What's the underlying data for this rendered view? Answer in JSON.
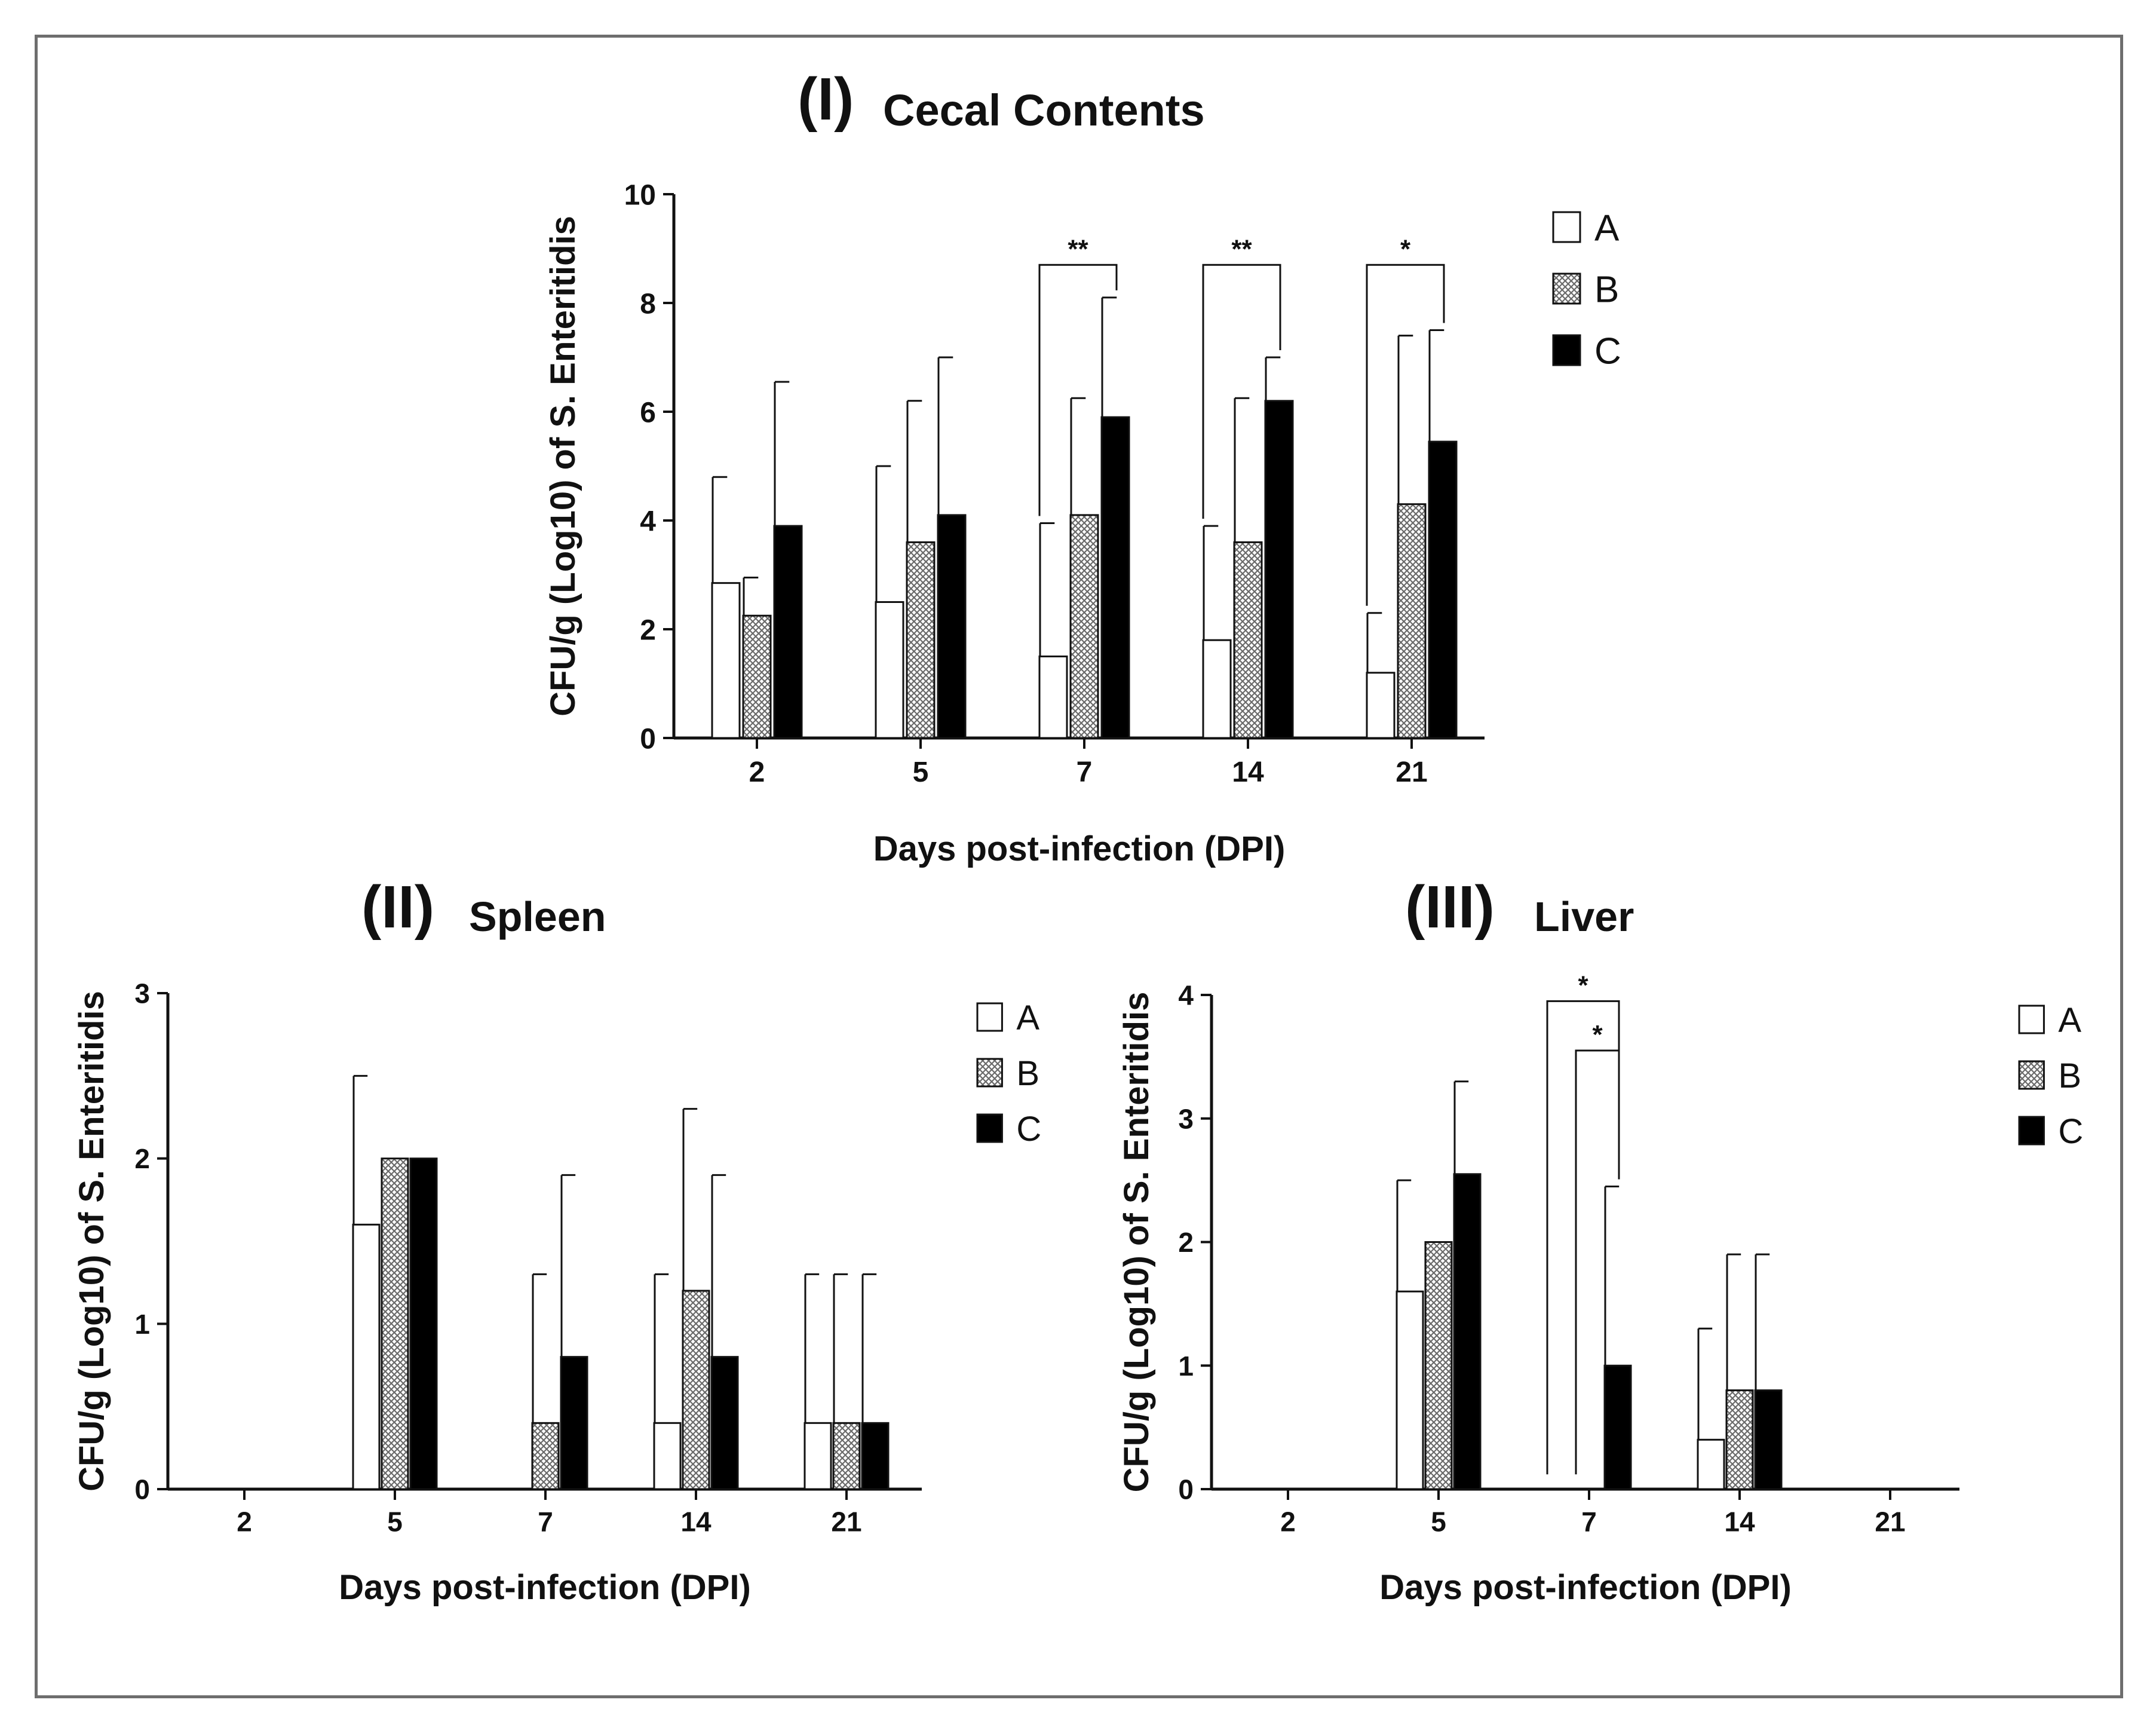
{
  "colors": {
    "A": "#ffffff",
    "B": "#c8c8c8",
    "C": "#000000",
    "axis": "#111111",
    "frame": "#6e6e6e"
  },
  "legend": [
    "A",
    "B",
    "C"
  ],
  "chart_data": [
    {
      "id": "panel-I",
      "type": "bar",
      "label": "(I)",
      "title": "Cecal Contents",
      "xlabel": "Days post-infection (DPI)",
      "ylabel": "CFU/g (Log10) of S. Enteritidis",
      "ylim": [
        0,
        10
      ],
      "yticks": [
        0,
        2,
        4,
        6,
        8,
        10
      ],
      "categories": [
        "2",
        "5",
        "7",
        "14",
        "21"
      ],
      "series": [
        {
          "name": "A",
          "values": [
            2.85,
            2.5,
            1.5,
            1.8,
            1.2
          ],
          "errors": [
            1.95,
            2.5,
            2.45,
            2.1,
            1.1
          ]
        },
        {
          "name": "B",
          "values": [
            2.25,
            3.6,
            4.1,
            3.6,
            4.3
          ],
          "errors": [
            0.7,
            2.6,
            2.15,
            2.65,
            3.1
          ]
        },
        {
          "name": "C",
          "values": [
            3.9,
            4.1,
            5.9,
            6.2,
            5.45
          ],
          "errors": [
            2.65,
            2.9,
            2.2,
            0.8,
            2.05
          ]
        }
      ],
      "significance": [
        {
          "category": "7",
          "from": "A",
          "to": "C",
          "label": "**",
          "y": 8.7
        },
        {
          "category": "14",
          "from": "A",
          "to": "C",
          "label": "**",
          "y": 8.7
        },
        {
          "category": "21",
          "from": "A",
          "to": "C",
          "label": "*",
          "y": 8.7
        }
      ]
    },
    {
      "id": "panel-II",
      "type": "bar",
      "label": "(II)",
      "title": "Spleen",
      "xlabel": "Days post-infection (DPI)",
      "ylabel": "CFU/g (Log10) of S. Enteritidis",
      "ylim": [
        0,
        3
      ],
      "yticks": [
        0,
        1,
        2,
        3
      ],
      "categories": [
        "2",
        "5",
        "7",
        "14",
        "21"
      ],
      "series": [
        {
          "name": "A",
          "values": [
            0,
            1.6,
            0,
            0.4,
            0.4
          ],
          "errors": [
            0,
            0.9,
            0,
            0.9,
            0.9
          ]
        },
        {
          "name": "B",
          "values": [
            0,
            2.0,
            0.4,
            1.2,
            0.4
          ],
          "errors": [
            0,
            0,
            0.9,
            1.1,
            0.9
          ]
        },
        {
          "name": "C",
          "values": [
            0,
            2.0,
            0.8,
            0.8,
            0.4
          ],
          "errors": [
            0,
            0,
            1.1,
            1.1,
            0.9
          ]
        }
      ],
      "significance": []
    },
    {
      "id": "panel-III",
      "type": "bar",
      "label": "(III)",
      "title": "Liver",
      "xlabel": "Days post-infection (DPI)",
      "ylabel": "CFU/g (Log10) of S. Enteritidis",
      "ylim": [
        0,
        4
      ],
      "yticks": [
        0,
        1,
        2,
        3,
        4
      ],
      "categories": [
        "2",
        "5",
        "7",
        "14",
        "21"
      ],
      "series": [
        {
          "name": "A",
          "values": [
            0,
            1.6,
            0,
            0.4,
            0
          ],
          "errors": [
            0,
            0.9,
            0,
            0.9,
            0
          ]
        },
        {
          "name": "B",
          "values": [
            0,
            2.0,
            0,
            0.8,
            0
          ],
          "errors": [
            0,
            0,
            0,
            1.1,
            0
          ]
        },
        {
          "name": "C",
          "values": [
            0,
            2.55,
            1.0,
            0.8,
            0
          ],
          "errors": [
            0,
            0.75,
            1.45,
            1.1,
            0
          ]
        }
      ],
      "significance": [
        {
          "category": "7",
          "from": "A",
          "to": "C",
          "label": "*",
          "y": 3.95,
          "y_from": 0.12
        },
        {
          "category": "7",
          "from": "B",
          "to": "C",
          "label": "*",
          "y": 3.55,
          "y_from": 0.12
        }
      ]
    }
  ]
}
